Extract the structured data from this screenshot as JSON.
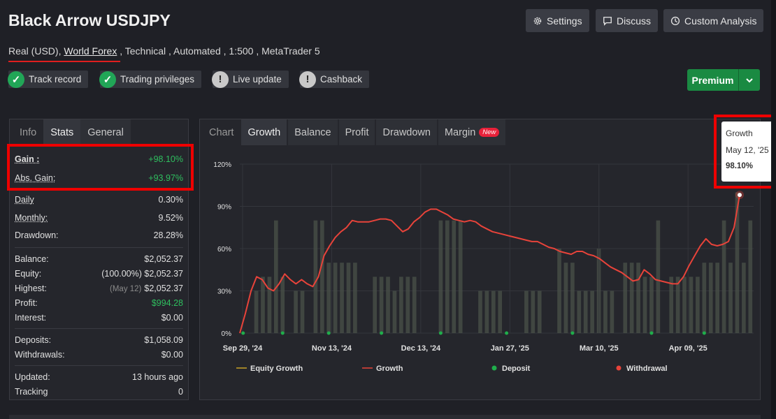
{
  "header": {
    "title": "Black Arrow USDJPY",
    "subtitle_prefix": "Real (USD),",
    "broker": "World Forex",
    "subtitle_suffix": ", Technical , Automated , 1:500 , MetaTrader 5"
  },
  "buttons": {
    "settings": "Settings",
    "discuss": "Discuss",
    "custom_analysis": "Custom Analysis",
    "premium": "Premium"
  },
  "badges": [
    "Track record",
    "Trading privileges",
    "Live update",
    "Cashback"
  ],
  "left_tabs": [
    "Info",
    "Stats",
    "General"
  ],
  "stats": {
    "gain_label": "Gain :",
    "gain": "+98.10%",
    "abs_gain_label": "Abs. Gain:",
    "abs_gain": "+93.97%",
    "daily_label": "Daily",
    "daily": "0.30%",
    "monthly_label": "Monthly:",
    "monthly": "9.52%",
    "drawdown_label": "Drawdown:",
    "drawdown": "28.28%",
    "balance_label": "Balance:",
    "balance": "$2,052.37",
    "equity_label": "Equity:",
    "equity_pct": "(100.00%)",
    "equity": "$2,052.37",
    "highest_label": "Highest:",
    "highest_date": "(May 12)",
    "highest": "$2,052.37",
    "profit_label": "Profit:",
    "profit": "$994.28",
    "interest_label": "Interest:",
    "interest": "$0.00",
    "deposits_label": "Deposits:",
    "deposits": "$1,058.09",
    "withdrawals_label": "Withdrawals:",
    "withdrawals": "$0.00",
    "updated_label": "Updated:",
    "updated": "13 hours ago",
    "tracking_label": "Tracking",
    "tracking": "0"
  },
  "chart_tabs": [
    "Chart",
    "Growth",
    "Balance",
    "Profit",
    "Drawdown",
    "Margin"
  ],
  "new_badge": "New",
  "tooltip": {
    "label": "Growth",
    "date": "May 12, '25",
    "value": "98.10%"
  },
  "colors": {
    "growth_line": "#e8433a",
    "equity_line": "#c9a227",
    "deposit": "#1fae4b",
    "withdrawal": "#e8433a",
    "bars": "#4a5248"
  },
  "chart_data": {
    "type": "line",
    "ylim": [
      0,
      120
    ],
    "y_ticks": [
      "0%",
      "30%",
      "60%",
      "90%",
      "120%"
    ],
    "x_ticks": [
      "Sep 29, '24",
      "Nov 13, '24",
      "Dec 13, '24",
      "Jan 27, '25",
      "Mar 10, '25",
      "Apr 09, '25"
    ],
    "legend": [
      "Equity Growth",
      "Growth",
      "Deposit",
      "Withdrawal"
    ],
    "growth": [
      0,
      14,
      30,
      40,
      38,
      32,
      30,
      35,
      42,
      38,
      35,
      38,
      35,
      33,
      40,
      55,
      62,
      68,
      72,
      75,
      80,
      79,
      79,
      79,
      80,
      81,
      81,
      80,
      76,
      72,
      74,
      79,
      82,
      86,
      88,
      88,
      86,
      84,
      81,
      80,
      79,
      80,
      79,
      76,
      74,
      72,
      71,
      70,
      69,
      68,
      67,
      66,
      65,
      65,
      63,
      61,
      60,
      58,
      57,
      56,
      58,
      58,
      56,
      55,
      53,
      50,
      47,
      45,
      43,
      40,
      37,
      38,
      45,
      42,
      38,
      37,
      36,
      35,
      35,
      40,
      48,
      55,
      62,
      67,
      63,
      62,
      63,
      65,
      75,
      98.1
    ],
    "bars": [
      0,
      0,
      30,
      40,
      40,
      80,
      40,
      0,
      30,
      30,
      0,
      80,
      80,
      50,
      50,
      50,
      50,
      50,
      0,
      0,
      40,
      40,
      40,
      30,
      40,
      40,
      40,
      0,
      0,
      0,
      80,
      80,
      80,
      80,
      0,
      0,
      30,
      30,
      30,
      30,
      0,
      0,
      0,
      30,
      30,
      30,
      0,
      0,
      60,
      50,
      50,
      30,
      30,
      30,
      60,
      30,
      30,
      0,
      50,
      50,
      50,
      40,
      40,
      80,
      0,
      40,
      40,
      40,
      40,
      40,
      50,
      50,
      50,
      80,
      50,
      100,
      50,
      80
    ]
  }
}
